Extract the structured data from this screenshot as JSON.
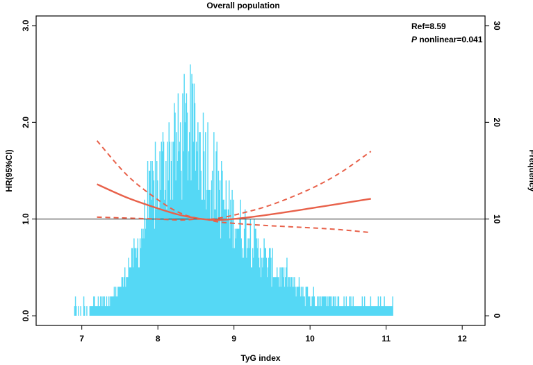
{
  "chart_data": {
    "type": "restricted-cubic-spline-with-histogram",
    "title": "Overall population",
    "xlabel": "TyG index",
    "ylabel": "HR(95%CI)",
    "y2label": "Frequency",
    "xlim": [
      6.4,
      12.3
    ],
    "ylim": [
      -0.1,
      3.1
    ],
    "y2lim": [
      -1,
      31
    ],
    "x_ticks": [
      7,
      8,
      9,
      10,
      11,
      12
    ],
    "x_tick_labels": [
      "7",
      "8",
      "9",
      "10",
      "11",
      "12"
    ],
    "y_ticks": [
      0,
      1,
      2,
      3
    ],
    "y_tick_labels": [
      "0.0",
      "1.0",
      "2.0",
      "3.0"
    ],
    "y2_ticks": [
      0,
      10,
      20,
      30
    ],
    "y2_tick_labels": [
      "0",
      "10",
      "20",
      "30"
    ],
    "reference_line": 1.0,
    "annotations": {
      "ref": "Ref=8.59",
      "p_italic": "P",
      "p_rest": " nonlinear=0.041"
    },
    "hr_curve": {
      "name": "HR",
      "color": "#e8614a",
      "x": [
        7.2,
        7.6,
        8.0,
        8.3,
        8.59,
        8.8,
        9.1,
        9.5,
        10.0,
        10.4,
        10.8
      ],
      "y": [
        1.36,
        1.22,
        1.11,
        1.04,
        1.0,
        0.99,
        1.01,
        1.05,
        1.11,
        1.16,
        1.21
      ]
    },
    "ci_upper": {
      "name": "95% CI upper",
      "x": [
        7.2,
        7.6,
        8.0,
        8.3,
        8.59,
        8.8,
        9.1,
        9.5,
        10.0,
        10.4,
        10.8
      ],
      "y": [
        1.81,
        1.45,
        1.2,
        1.06,
        1.0,
        1.01,
        1.06,
        1.15,
        1.31,
        1.48,
        1.7
      ]
    },
    "ci_lower": {
      "name": "95% CI lower",
      "x": [
        7.2,
        7.6,
        8.0,
        8.3,
        8.59,
        8.8,
        9.1,
        9.5,
        10.0,
        10.4,
        10.8
      ],
      "y": [
        1.02,
        1.01,
        1.0,
        0.99,
        1.0,
        0.97,
        0.95,
        0.93,
        0.91,
        0.89,
        0.86
      ]
    },
    "histogram": {
      "color": "#55d8f5",
      "bin_width": 0.01,
      "x_start": 6.9,
      "x_end": 11.08,
      "peak_x": 8.42,
      "peak_frequency": 26,
      "typical_frequency": [
        [
          6.9,
          1
        ],
        [
          7.2,
          1
        ],
        [
          7.4,
          2
        ],
        [
          7.5,
          3
        ],
        [
          7.6,
          5
        ],
        [
          7.7,
          6
        ],
        [
          7.8,
          9
        ],
        [
          7.9,
          12
        ],
        [
          8.0,
          14
        ],
        [
          8.1,
          16
        ],
        [
          8.2,
          17
        ],
        [
          8.3,
          18
        ],
        [
          8.4,
          19
        ],
        [
          8.5,
          18
        ],
        [
          8.6,
          17
        ],
        [
          8.7,
          15
        ],
        [
          8.8,
          13
        ],
        [
          8.9,
          11
        ],
        [
          9.0,
          10
        ],
        [
          9.2,
          8
        ],
        [
          9.4,
          6
        ],
        [
          9.6,
          4
        ],
        [
          9.8,
          3
        ],
        [
          10.0,
          2
        ],
        [
          10.3,
          1.5
        ],
        [
          10.6,
          1
        ],
        [
          11.08,
          1
        ]
      ]
    }
  }
}
